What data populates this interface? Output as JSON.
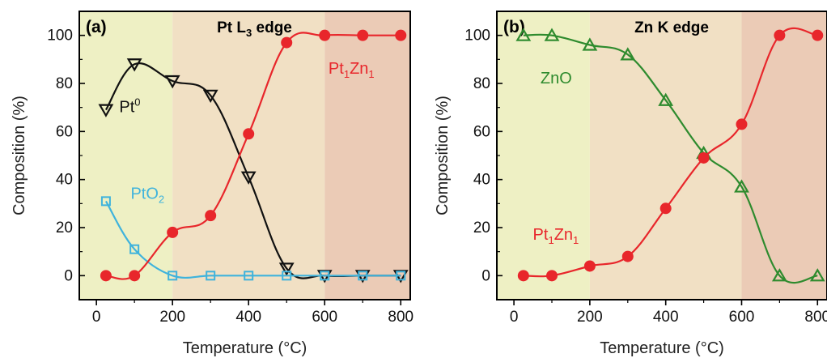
{
  "chart_data": [
    {
      "type": "line",
      "panel_label": "(a)",
      "title": "Pt L",
      "title_sub": "3",
      "title_suffix": " edge",
      "xlabel": "Temperature (°C)",
      "ylabel": "Composition (%)",
      "xlim": [
        -45,
        825
      ],
      "ylim": [
        -10,
        110
      ],
      "xticks": [
        0,
        200,
        400,
        600,
        800
      ],
      "yticks": [
        0,
        20,
        40,
        60,
        80,
        100
      ],
      "background_bands": [
        {
          "from": -45,
          "to": 200,
          "color": "#eef0c4"
        },
        {
          "from": 200,
          "to": 600,
          "color": "#f1e0c4"
        },
        {
          "from": 600,
          "to": 825,
          "color": "#ebcbb6"
        }
      ],
      "series": [
        {
          "name": "Pt",
          "label_sup": "0",
          "label_x": 60,
          "label_y": 68,
          "color": "#111111",
          "marker": "triangle-down",
          "x": [
            25,
            100,
            200,
            300,
            400,
            500,
            600,
            700,
            800
          ],
          "y": [
            69,
            88,
            81,
            75,
            41,
            3,
            0,
            0,
            0
          ]
        },
        {
          "name": "PtO",
          "label_sub": "2",
          "label_x": 90,
          "label_y": 32,
          "color": "#3fb3dc",
          "marker": "square",
          "x": [
            25,
            100,
            200,
            300,
            400,
            500,
            600,
            700,
            800
          ],
          "y": [
            31,
            11,
            0,
            0,
            0,
            0,
            0,
            0,
            0
          ]
        },
        {
          "name": "Pt",
          "label_sub": "1",
          "label_mid": "Zn",
          "label_sub2": "1",
          "label_x": 610,
          "label_y": 84,
          "color": "#e8262b",
          "marker": "circle",
          "x": [
            25,
            100,
            200,
            300,
            400,
            500,
            600,
            700,
            800
          ],
          "y": [
            0,
            0,
            18,
            25,
            59,
            97,
            100,
            100,
            100
          ]
        }
      ]
    },
    {
      "type": "line",
      "panel_label": "(b)",
      "title": "Zn K edge",
      "xlabel": "Temperature (°C)",
      "ylabel": "Composition (%)",
      "xlim": [
        -45,
        825
      ],
      "ylim": [
        -10,
        110
      ],
      "xticks": [
        0,
        200,
        400,
        600,
        800
      ],
      "yticks": [
        0,
        20,
        40,
        60,
        80,
        100
      ],
      "background_bands": [
        {
          "from": -45,
          "to": 200,
          "color": "#eef0c4"
        },
        {
          "from": 200,
          "to": 600,
          "color": "#f1e0c4"
        },
        {
          "from": 600,
          "to": 825,
          "color": "#ebcbb6"
        }
      ],
      "series": [
        {
          "name": "ZnO",
          "label_x": 70,
          "label_y": 80,
          "color": "#2e8b2e",
          "marker": "triangle-up",
          "x": [
            25,
            100,
            200,
            300,
            400,
            500,
            600,
            700,
            800
          ],
          "y": [
            100,
            100,
            96,
            92,
            73,
            51,
            37,
            0,
            0
          ]
        },
        {
          "name": "Pt",
          "label_sub": "1",
          "label_mid": "Zn",
          "label_sub2": "1",
          "label_x": 50,
          "label_y": 15,
          "color": "#e8262b",
          "marker": "circle",
          "x": [
            25,
            100,
            200,
            300,
            400,
            500,
            600,
            700,
            800
          ],
          "y": [
            0,
            0,
            4,
            8,
            28,
            49,
            63,
            100,
            100
          ]
        }
      ]
    }
  ]
}
